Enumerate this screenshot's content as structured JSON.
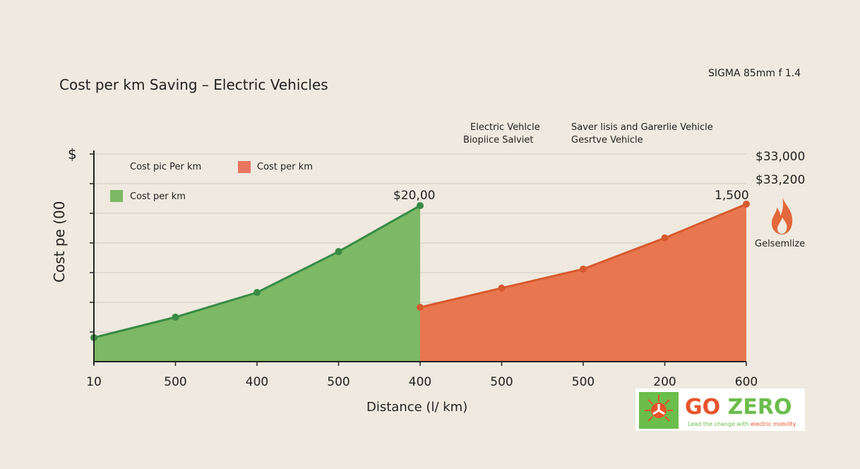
{
  "title": "Cost per km Saving – Electric Vehicles",
  "camera_label": "SIGMA 85mm f 1.4",
  "annotations": {
    "ev_line1": "Electric Vehlcle",
    "ev_line2": "Biopiice Salviet",
    "gas_line1": "Saver lisis and Garerlie Vehicle",
    "gas_line2": "Gesrtve Vehicle",
    "right_top": "$33,000",
    "right_second": "$33,200",
    "flame_label": "Gelsemlize",
    "ev_peak": "$20,00",
    "gas_peak": "1,500"
  },
  "colors": {
    "ev": "#7cb865",
    "ev_line": "#3a8a45",
    "gas": "#e8764f",
    "gas_line": "#d65a2e",
    "background": "#efe9df"
  },
  "icons": [
    "flame-icon",
    "sun-logo-icon"
  ],
  "logo": {
    "brand_go": "GO",
    "brand_zero": "ZERO",
    "tagline_a": "Lead the change with ",
    "tagline_b": "electric mobility"
  },
  "chart_data": {
    "type": "area",
    "title": "Cost per km Saving – Electric Vehicles",
    "xlabel": "Distance (l/ km)",
    "ylabel": "Cost pe (00",
    "y_unit_label": "$",
    "x_tick_labels": [
      "10",
      "500",
      "400",
      "500",
      "400",
      "500",
      "500",
      "200",
      "600"
    ],
    "ylim": [
      0,
      7
    ],
    "grid": true,
    "legend": {
      "position": "top-left",
      "entries": [
        {
          "label": "Cost pic Per km",
          "swatch": "none"
        },
        {
          "label": "Cost per km",
          "swatch": "gas"
        },
        {
          "label": "Cost per km",
          "swatch": "ev"
        }
      ]
    },
    "series": [
      {
        "name": "Electric Vehicle",
        "x_index": [
          0,
          1,
          2,
          3,
          4
        ],
        "values": [
          0.81,
          1.5,
          2.33,
          3.71,
          5.26
        ]
      },
      {
        "name": "Gasoline Vehicle",
        "x_index": [
          4,
          5,
          6,
          7,
          8
        ],
        "values": [
          1.83,
          2.48,
          3.12,
          4.17,
          5.31
        ]
      }
    ]
  }
}
